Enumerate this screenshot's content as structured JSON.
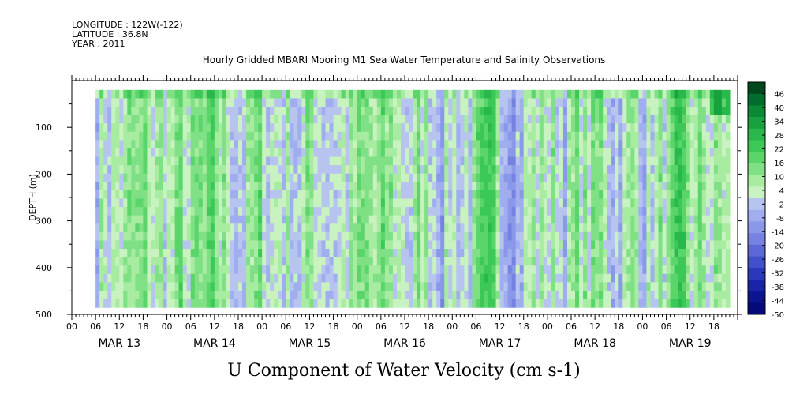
{
  "header": {
    "longitude": "LONGITUDE : 122W(-122)",
    "latitude": "LATITUDE : 36.8N",
    "year": "YEAR : 2011"
  },
  "chart_data": {
    "type": "heatmap",
    "title": "Hourly Gridded MBARI Mooring M1 Sea Water Temperature and Salinity Observations",
    "caption": "U Component of Water Velocity (cm s-1)",
    "ylabel": "DEPTH (m)",
    "y_range": [
      0,
      500
    ],
    "y_reversed": true,
    "y_ticks": [
      100,
      200,
      300,
      400,
      500
    ],
    "x_range_hours": [
      0,
      168
    ],
    "x_hour_labels": [
      "00",
      "06",
      "12",
      "18",
      "00",
      "06",
      "12",
      "18",
      "00",
      "06",
      "12",
      "18",
      "00",
      "06",
      "12",
      "18",
      "00",
      "06",
      "12",
      "18",
      "00",
      "06",
      "12",
      "18",
      "00",
      "06",
      "12",
      "18"
    ],
    "x_day_labels": [
      "MAR 13",
      "MAR 14",
      "MAR 15",
      "MAR 16",
      "MAR 17",
      "MAR 18",
      "MAR 19"
    ],
    "data_x_range_hours": [
      6,
      166
    ],
    "data_depth_range": [
      20,
      485
    ],
    "colorbar": {
      "levels": [
        46,
        40,
        34,
        28,
        22,
        16,
        10,
        4,
        -2,
        -8,
        -14,
        -20,
        -26,
        -32,
        -38,
        -44,
        -50
      ],
      "colors": [
        "#00471c",
        "#006d2c",
        "#0a8a34",
        "#17a23e",
        "#28b84b",
        "#3cc857",
        "#5ad56a",
        "#7fe085",
        "#a8eca2",
        "#c8f2c0",
        "#b8c4f0",
        "#a0aef0",
        "#8a98ea",
        "#7682e2",
        "#5c68d8",
        "#4350cc",
        "#2c38bc",
        "#1a24a8",
        "#0c1492",
        "#050a7a"
      ]
    },
    "field_summary": {
      "value_range": [
        -20,
        46
      ],
      "dominant_range": [
        -14,
        16
      ],
      "pattern": "alternating vertical bands of positive (green) and negative (blue) velocity through the full depth range; strongest positive values near the surface at the end of MAR 19"
    }
  }
}
